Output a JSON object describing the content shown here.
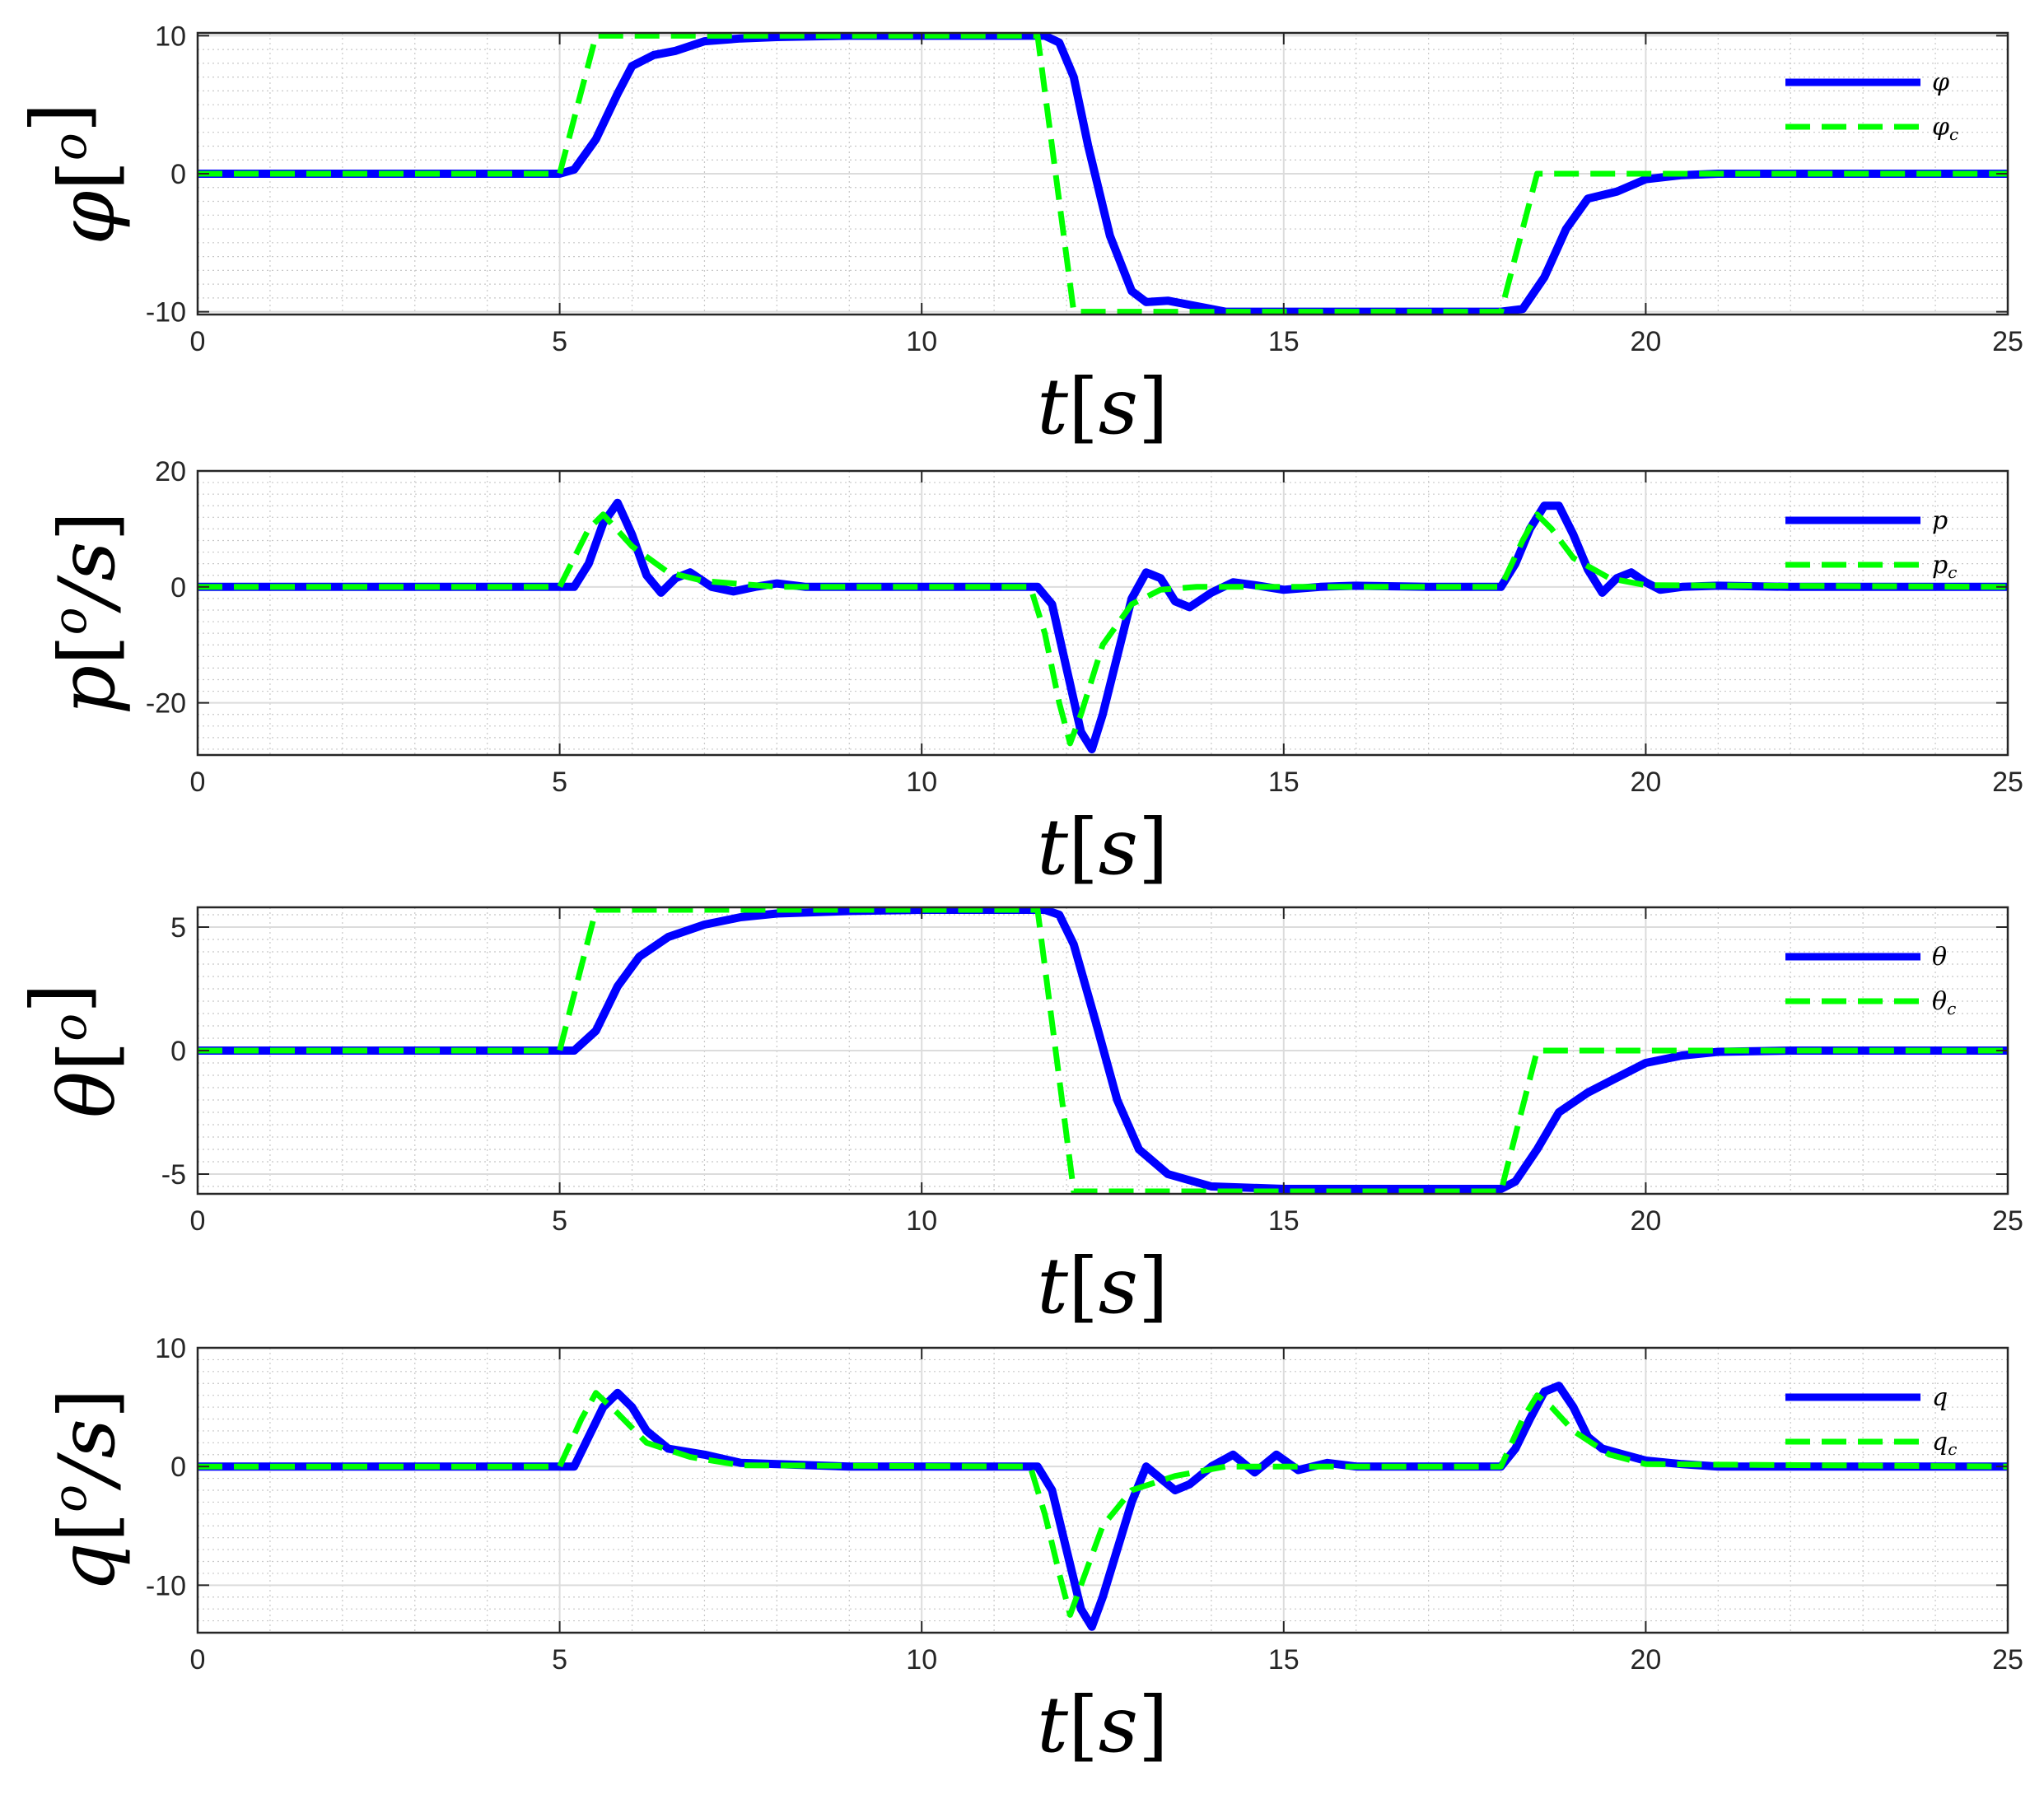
{
  "colors": {
    "actual": "#0000ff",
    "command": "#00ff00"
  },
  "chart_data": [
    {
      "type": "line",
      "name": "phi",
      "ylabel": {
        "sym": "φ",
        "open": "[",
        "sup": "o",
        "mid": "",
        "close": "]"
      },
      "xlabel": {
        "sym": "t",
        "open": "[",
        "unit": "s",
        "close": "]"
      },
      "xlim": [
        0,
        25
      ],
      "ylim": [
        -10.2,
        10.2
      ],
      "xticks": [
        0,
        5,
        10,
        15,
        20,
        25
      ],
      "yticks": [
        -10,
        0,
        10
      ],
      "ytick_labels": [
        "-10",
        "0",
        "10"
      ],
      "grid": true,
      "legend": "top-right",
      "series": [
        {
          "name": "φ",
          "name_sub": "",
          "style": "solid",
          "x": [
            0,
            5,
            5.2,
            5.5,
            5.8,
            6,
            6.3,
            6.6,
            7,
            7.5,
            8,
            9,
            10,
            11,
            11.7,
            11.9,
            12.1,
            12.3,
            12.6,
            12.9,
            13.1,
            13.4,
            13.8,
            14.2,
            15,
            16,
            17,
            18,
            18.3,
            18.6,
            18.9,
            19.2,
            19.6,
            20,
            20.5,
            21,
            22,
            25
          ],
          "y": [
            0,
            0,
            0.3,
            2.5,
            5.8,
            7.8,
            8.6,
            8.9,
            9.6,
            9.8,
            9.9,
            10,
            10,
            10,
            10,
            9.5,
            7,
            2,
            -4.5,
            -8.5,
            -9.3,
            -9.2,
            -9.6,
            -10,
            -10,
            -10,
            -10,
            -10,
            -9.8,
            -7.5,
            -4,
            -1.8,
            -1.3,
            -0.4,
            -0.1,
            0,
            0,
            0
          ]
        },
        {
          "name": "φ",
          "name_sub": "c",
          "style": "dashed",
          "x": [
            0,
            5,
            5.5,
            11.6,
            12.1,
            18,
            18.5,
            25
          ],
          "y": [
            0,
            0,
            10,
            10,
            -10,
            -10,
            0,
            0
          ]
        }
      ]
    },
    {
      "type": "line",
      "name": "p",
      "ylabel": {
        "sym": "p",
        "open": "[",
        "sup": "o",
        "mid": "/s",
        "close": "]"
      },
      "xlabel": {
        "sym": "t",
        "open": "[",
        "unit": "s",
        "close": "]"
      },
      "xlim": [
        0,
        25
      ],
      "ylim": [
        -29,
        20
      ],
      "xticks": [
        0,
        5,
        10,
        15,
        20,
        25
      ],
      "yticks": [
        -20,
        0,
        20
      ],
      "ytick_labels": [
        "-20",
        "0",
        "20"
      ],
      "grid": true,
      "legend": "top-right",
      "series": [
        {
          "name": "p",
          "name_sub": "",
          "style": "solid",
          "x": [
            0,
            5.2,
            5.4,
            5.6,
            5.8,
            6,
            6.2,
            6.4,
            6.6,
            6.8,
            7.1,
            7.4,
            7.7,
            8,
            8.4,
            9,
            10,
            11,
            11.6,
            11.8,
            12,
            12.2,
            12.35,
            12.5,
            12.7,
            12.9,
            13.1,
            13.3,
            13.5,
            13.7,
            14,
            14.3,
            14.6,
            15,
            15.5,
            16,
            17,
            18,
            18.2,
            18.4,
            18.6,
            18.8,
            19,
            19.2,
            19.4,
            19.6,
            19.8,
            20,
            20.2,
            20.5,
            21,
            22,
            25
          ],
          "y": [
            0,
            0,
            4,
            11,
            14.5,
            9,
            2,
            -1,
            1.5,
            2.5,
            0,
            -0.8,
            0,
            0.6,
            0,
            0,
            0,
            0,
            0,
            -3,
            -14,
            -25,
            -28,
            -22,
            -12,
            -2,
            2.5,
            1.5,
            -2.5,
            -3.5,
            -1,
            0.8,
            0.3,
            -0.5,
            0,
            0.2,
            0,
            0,
            4,
            10,
            14,
            14,
            9,
            3,
            -1,
            1.5,
            2.5,
            0.8,
            -0.5,
            0,
            0.2,
            0,
            0
          ]
        },
        {
          "name": "p",
          "name_sub": "c",
          "style": "dashed",
          "x": [
            0,
            5,
            5.4,
            5.6,
            6,
            6.5,
            7,
            8,
            11.5,
            11.7,
            11.9,
            12.05,
            12.2,
            12.5,
            12.9,
            13.3,
            13.8,
            14.5,
            18,
            18.3,
            18.5,
            18.7,
            19,
            19.5,
            20,
            25
          ],
          "y": [
            0,
            0,
            10,
            12.5,
            7,
            2.5,
            1,
            0,
            0,
            -8,
            -20,
            -27,
            -22,
            -10,
            -3,
            -0.5,
            0,
            0,
            0,
            8,
            12.5,
            10,
            5,
            1.5,
            0.3,
            0
          ]
        }
      ]
    },
    {
      "type": "line",
      "name": "theta",
      "ylabel": {
        "sym": "θ",
        "open": "[",
        "sup": "o",
        "mid": "",
        "close": "]"
      },
      "xlabel": {
        "sym": "t",
        "open": "[",
        "unit": "s",
        "close": "]"
      },
      "xlim": [
        0,
        25
      ],
      "ylim": [
        -5.8,
        5.8
      ],
      "xticks": [
        0,
        5,
        10,
        15,
        20,
        25
      ],
      "yticks": [
        -5,
        0,
        5
      ],
      "ytick_labels": [
        "-5",
        "0",
        "5"
      ],
      "grid": true,
      "legend": "top-right",
      "series": [
        {
          "name": "θ",
          "name_sub": "",
          "style": "solid",
          "x": [
            0,
            5.2,
            5.5,
            5.8,
            6.1,
            6.5,
            7,
            7.5,
            8,
            9,
            10,
            11,
            11.7,
            11.9,
            12.1,
            12.4,
            12.7,
            13,
            13.4,
            14,
            15,
            16,
            17,
            18,
            18.2,
            18.5,
            18.8,
            19.2,
            19.6,
            20,
            20.5,
            21,
            22,
            25
          ],
          "y": [
            0,
            0,
            0.8,
            2.6,
            3.8,
            4.6,
            5.1,
            5.4,
            5.55,
            5.65,
            5.7,
            5.7,
            5.7,
            5.5,
            4.3,
            1.2,
            -2,
            -4,
            -5,
            -5.5,
            -5.6,
            -5.6,
            -5.6,
            -5.6,
            -5.3,
            -4,
            -2.5,
            -1.7,
            -1.1,
            -0.5,
            -0.2,
            -0.05,
            0,
            0
          ]
        },
        {
          "name": "θ",
          "name_sub": "c",
          "style": "dashed",
          "x": [
            0,
            5,
            5.5,
            11.6,
            12.1,
            18,
            18.5,
            25
          ],
          "y": [
            0,
            0,
            5.7,
            5.7,
            -5.7,
            -5.7,
            0,
            0
          ]
        }
      ]
    },
    {
      "type": "line",
      "name": "q",
      "ylabel": {
        "sym": "q",
        "open": "[",
        "sup": "o",
        "mid": "/s",
        "close": "]"
      },
      "xlabel": {
        "sym": "t",
        "open": "[",
        "unit": "s",
        "close": "]"
      },
      "xlim": [
        0,
        25
      ],
      "ylim": [
        -14,
        10
      ],
      "xticks": [
        0,
        5,
        10,
        15,
        20,
        25
      ],
      "yticks": [
        -10,
        0,
        10
      ],
      "ytick_labels": [
        "-10",
        "0",
        "10"
      ],
      "grid": true,
      "legend": "top-right",
      "series": [
        {
          "name": "q",
          "name_sub": "",
          "style": "solid",
          "x": [
            0,
            5.2,
            5.4,
            5.6,
            5.8,
            6,
            6.2,
            6.5,
            7,
            7.5,
            8,
            9,
            10,
            11,
            11.6,
            11.8,
            12,
            12.2,
            12.35,
            12.5,
            12.7,
            12.9,
            13.1,
            13.3,
            13.5,
            13.7,
            14,
            14.3,
            14.6,
            14.9,
            15.2,
            15.6,
            16,
            17,
            18,
            18.2,
            18.4,
            18.6,
            18.8,
            19,
            19.2,
            19.4,
            19.7,
            20,
            20.5,
            21,
            22,
            25
          ],
          "y": [
            0,
            0,
            2.5,
            5,
            6.2,
            5,
            3,
            1.5,
            1,
            0.3,
            0.2,
            0,
            0,
            0,
            0,
            -2,
            -7,
            -12,
            -13.5,
            -11,
            -7,
            -3,
            0,
            -1,
            -2,
            -1.5,
            0,
            1,
            -0.5,
            1,
            -0.3,
            0.3,
            0,
            0,
            0,
            1.5,
            4,
            6.3,
            6.8,
            5,
            2.5,
            1.5,
            1,
            0.5,
            0.2,
            0,
            0,
            0
          ]
        },
        {
          "name": "q",
          "name_sub": "c",
          "style": "dashed",
          "x": [
            0,
            5,
            5.3,
            5.5,
            5.8,
            6.2,
            6.8,
            7.5,
            11.5,
            11.7,
            11.9,
            12.05,
            12.2,
            12.5,
            12.9,
            13.5,
            14.2,
            15,
            18,
            18.3,
            18.5,
            18.7,
            19,
            19.5,
            20,
            25
          ],
          "y": [
            0,
            0,
            4,
            6.2,
            4.5,
            2,
            0.8,
            0.1,
            0,
            -4,
            -9,
            -12.5,
            -10,
            -5,
            -2,
            -0.8,
            0,
            0,
            0,
            4,
            6,
            5,
            3,
            1,
            0.2,
            0
          ]
        }
      ]
    }
  ]
}
